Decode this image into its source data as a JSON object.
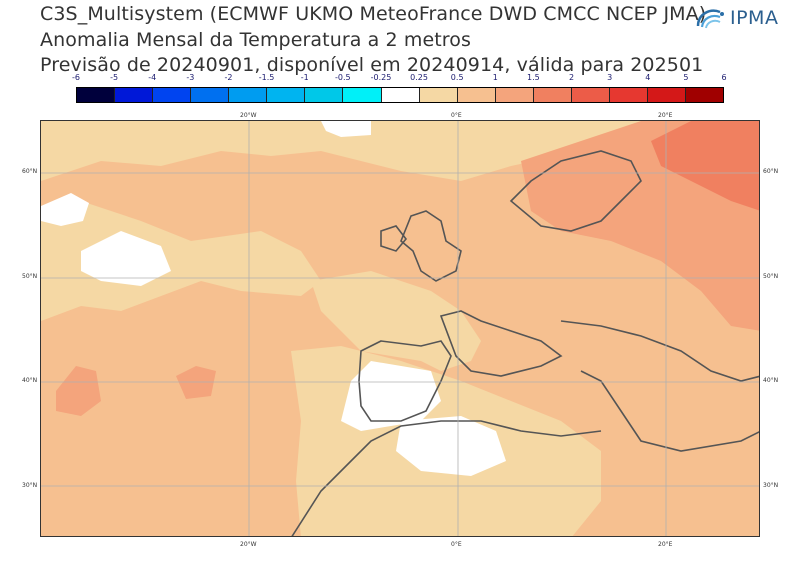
{
  "title": {
    "line1": "C3S_Multisystem (ECMWF UKMO MeteoFrance DWD CMCC NCEP JMA)",
    "line2": "Anomalia Mensal da Temperatura a 2 metros",
    "line3": "Previsão de 20240901, disponível em 20240914, válida para 202501"
  },
  "logo": {
    "text": "IPMA",
    "icon": "ipma-swirl-icon"
  },
  "colorbar": {
    "ticks": [
      "-6",
      "-5",
      "-4",
      "-3",
      "-2",
      "-1.5",
      "-1",
      "-0.5",
      "-0.25",
      "0.25",
      "0.5",
      "1",
      "1.5",
      "2",
      "3",
      "4",
      "5",
      "6"
    ],
    "colors": [
      "#00003c",
      "#0018d8",
      "#0044f0",
      "#0070f0",
      "#009cf0",
      "#00b4f0",
      "#00c8e8",
      "#00f0f8",
      "#ffffff",
      "#f5d8a4",
      "#f6c090",
      "#f4a47c",
      "#f08060",
      "#ec5c48",
      "#e63830",
      "#d41818",
      "#a00000"
    ]
  },
  "map": {
    "lon_labels_top": [
      "20°W",
      "0°E",
      "20°E"
    ],
    "lon_labels_bottom": [
      "20°W",
      "0°E",
      "20°E"
    ],
    "lat_labels_left": [
      "60°N",
      "50°N",
      "40°N",
      "30°N"
    ],
    "lat_labels_right": [
      "60°N",
      "50°N",
      "40°N",
      "30°N"
    ]
  }
}
